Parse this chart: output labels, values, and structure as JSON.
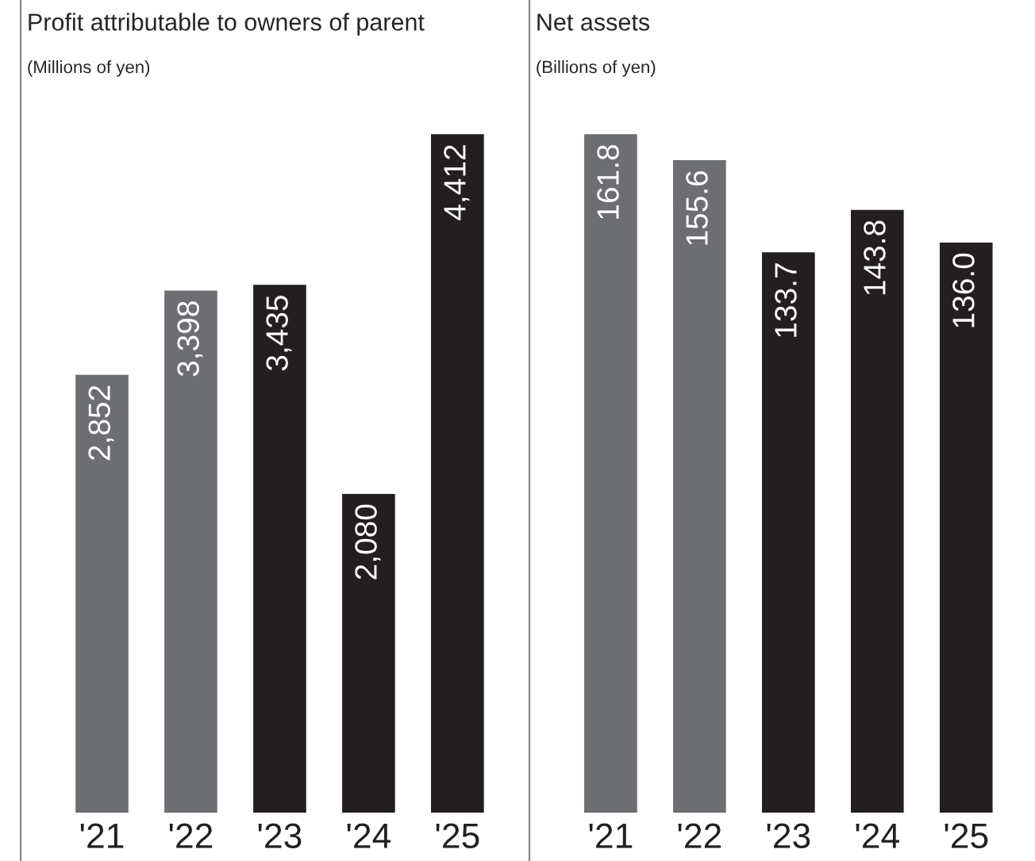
{
  "chart_data": [
    {
      "type": "bar",
      "title": "Profit attributable to owners of parent",
      "subtitle": "(Millions of yen)",
      "categories": [
        "'21",
        "'22",
        "'23",
        "'24",
        "'25"
      ],
      "values": [
        2852,
        3398,
        3435,
        2080,
        4412
      ],
      "colors": [
        "#6d6e71",
        "#6d6e71",
        "#231f20",
        "#231f20",
        "#231f20"
      ],
      "value_labels": [
        "2,852",
        "3,398",
        "3,435",
        "2,080",
        "4,412"
      ],
      "tick_labels": "x"
    },
    {
      "type": "bar",
      "title": "Net assets",
      "subtitle": "(Billions of yen)",
      "categories": [
        "'21",
        "'22",
        "'23",
        "'24",
        "'25"
      ],
      "values": [
        161.8,
        155.6,
        133.7,
        143.8,
        136.0
      ],
      "colors": [
        "#6d6e71",
        "#6d6e71",
        "#231f20",
        "#231f20",
        "#231f20"
      ],
      "value_labels": [
        "161.8",
        "155.6",
        "133.7",
        "143.8",
        "136.0"
      ],
      "tick_labels": "x"
    }
  ]
}
